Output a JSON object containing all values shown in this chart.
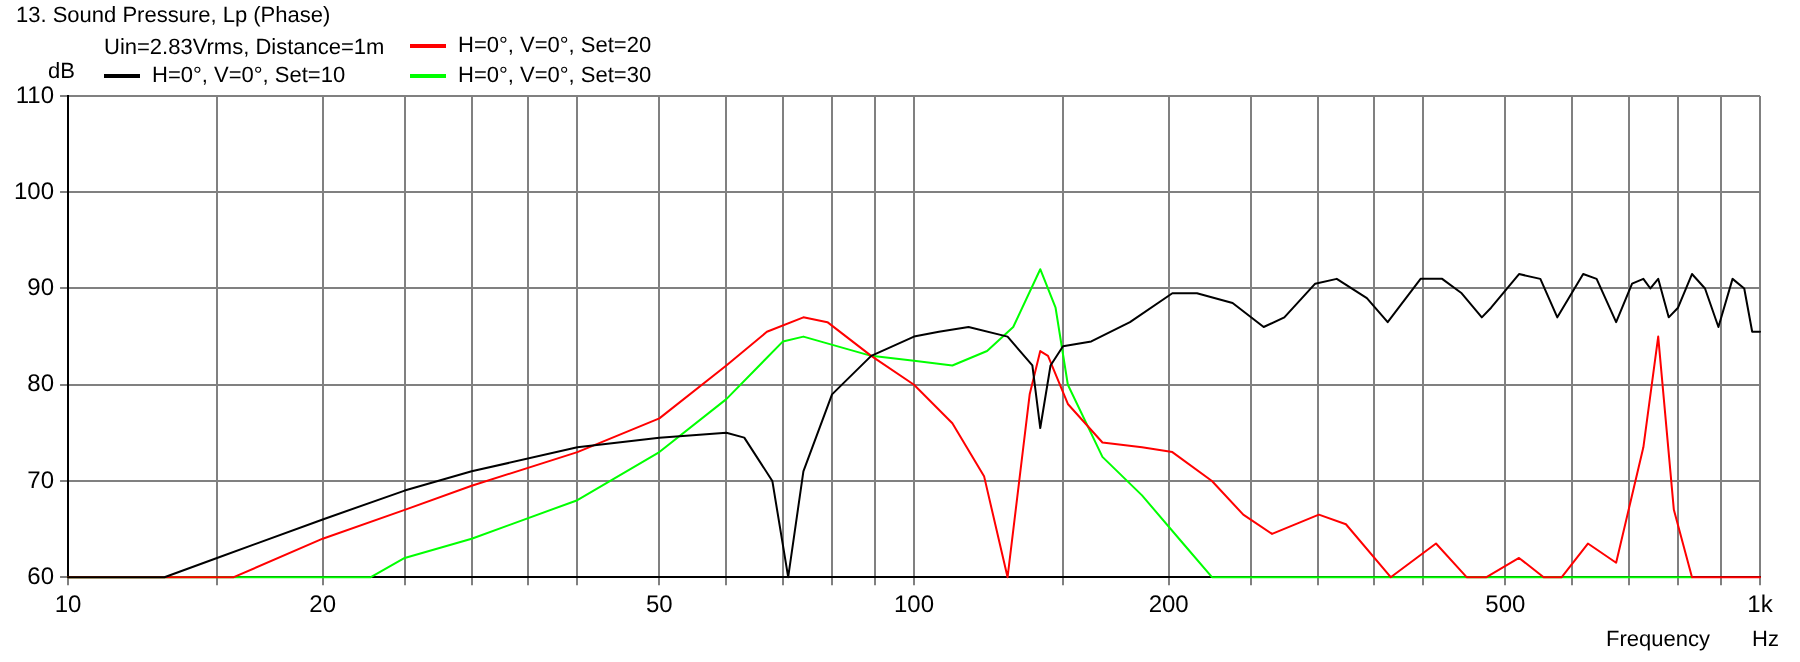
{
  "chart_data": {
    "type": "line",
    "title": "13. Sound Pressure, Lp (Phase)",
    "subtitle": "Uin=2.83Vrms, Distance=1m",
    "xlabel": "Frequency",
    "ylabel": "dB",
    "annotations": [
      "Hz"
    ],
    "log": "x",
    "xlim": [
      10,
      1000
    ],
    "ylim": [
      60,
      110
    ],
    "xticks": [
      10,
      {
        "value": 15,
        "label": null
      },
      20,
      {
        "value": 25,
        "label": null
      },
      {
        "value": 30,
        "label": null
      },
      {
        "value": 35,
        "label": null
      },
      {
        "value": 40,
        "label": null
      },
      50,
      {
        "value": 60,
        "label": null
      },
      {
        "value": 70,
        "label": null
      },
      {
        "value": 80,
        "label": null
      },
      {
        "value": 90,
        "label": null
      },
      100,
      {
        "value": 150,
        "label": null
      },
      200,
      {
        "value": 250,
        "label": null
      },
      {
        "value": 300,
        "label": null
      },
      {
        "value": 350,
        "label": null
      },
      {
        "value": 400,
        "label": null
      },
      500,
      {
        "value": 600,
        "label": null
      },
      {
        "value": 700,
        "label": null
      },
      {
        "value": 800,
        "label": null
      },
      {
        "value": 900,
        "label": null
      },
      {
        "value": 1000,
        "label": "1k"
      }
    ],
    "yticks": [
      60,
      70,
      80,
      90,
      100,
      110
    ],
    "grid": true,
    "legend": "top left",
    "marker": "none",
    "line_style": "solid",
    "series": [
      {
        "name": "H=0°, V=0°, Set=10",
        "color": "#000000",
        "x": [
          10,
          13,
          15,
          20,
          25,
          30,
          40,
          50,
          60,
          63,
          68,
          71,
          74,
          80,
          89,
          100,
          107,
          116,
          129,
          138,
          141,
          145,
          150,
          162,
          180,
          202,
          216,
          238,
          259,
          274,
          298,
          316,
          343,
          363,
          397,
          421,
          444,
          469,
          481,
          519,
          550,
          576,
          618,
          641,
          676,
          706,
          728,
          742,
          758,
          780,
          800,
          831,
          861,
          893,
          928,
          958,
          979,
          1000
        ],
        "values": [
          60,
          60,
          62,
          66,
          69,
          71,
          73.5,
          74.5,
          75,
          74.5,
          70,
          60,
          71,
          79,
          83,
          85,
          85.5,
          86,
          85,
          82,
          75.5,
          82,
          84,
          84.5,
          86.5,
          89.5,
          89.5,
          88.5,
          86,
          87,
          90.5,
          91,
          89,
          86.5,
          91,
          91,
          89.5,
          87,
          88,
          91.5,
          91,
          87,
          91.5,
          91,
          86.5,
          90.5,
          91,
          90,
          91,
          87,
          88,
          91.5,
          90,
          86,
          91,
          90,
          85.5,
          85.5
        ]
      },
      {
        "name": "H=0°, V=0°, Set=20",
        "color": "#ff0000",
        "x": [
          10,
          15.7,
          20,
          25,
          30,
          40,
          50,
          60,
          67,
          74,
          79,
          89,
          100,
          111,
          121,
          129,
          137,
          141,
          144,
          152,
          167,
          186,
          202,
          225,
          245,
          265,
          301,
          324,
          366,
          414,
          450,
          475,
          519,
          555,
          583,
          626,
          676,
          728,
          758,
          791,
          831,
          1000
        ],
        "values": [
          60,
          60,
          64,
          67,
          69.5,
          73,
          76.5,
          82,
          85.5,
          87,
          86.5,
          83,
          80,
          76,
          70.5,
          60,
          79,
          83.5,
          83,
          78,
          74,
          73.5,
          73,
          70,
          66.5,
          64.5,
          66.5,
          65.5,
          60,
          63.5,
          60,
          60,
          62,
          60,
          60,
          63.5,
          61.5,
          73.5,
          85,
          67,
          60,
          60
        ]
      },
      {
        "name": "H=0°, V=0°, Set=30",
        "color": "#00ff00",
        "x": [
          10,
          22.8,
          25,
          30,
          40,
          50,
          60,
          70,
          74,
          89,
          100,
          111,
          122,
          131,
          141,
          147,
          152,
          167,
          186,
          208,
          225,
          831
        ],
        "values": [
          60,
          60,
          62,
          64,
          68,
          73,
          78.5,
          84.5,
          85,
          83,
          82.5,
          82,
          83.5,
          86,
          92,
          88,
          80,
          72.5,
          68.5,
          63.5,
          60,
          60
        ]
      }
    ]
  }
}
